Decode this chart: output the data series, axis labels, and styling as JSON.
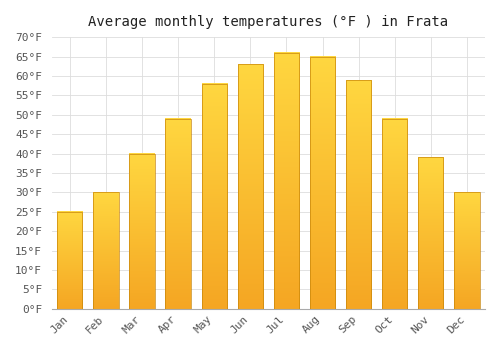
{
  "title": "Average monthly temperatures (°F ) in Frata",
  "months": [
    "Jan",
    "Feb",
    "Mar",
    "Apr",
    "May",
    "Jun",
    "Jul",
    "Aug",
    "Sep",
    "Oct",
    "Nov",
    "Dec"
  ],
  "values": [
    25,
    30,
    40,
    49,
    58,
    63,
    66,
    65,
    59,
    49,
    39,
    30
  ],
  "bar_color_top": "#FFD740",
  "bar_color_bottom": "#F5A623",
  "bar_edge_color": "#C8860A",
  "background_color": "#FFFFFF",
  "plot_bg_color": "#FFFFFF",
  "grid_color": "#DDDDDD",
  "ylim": [
    0,
    70
  ],
  "ytick_step": 5,
  "title_fontsize": 10,
  "tick_fontsize": 8,
  "font_family": "monospace"
}
